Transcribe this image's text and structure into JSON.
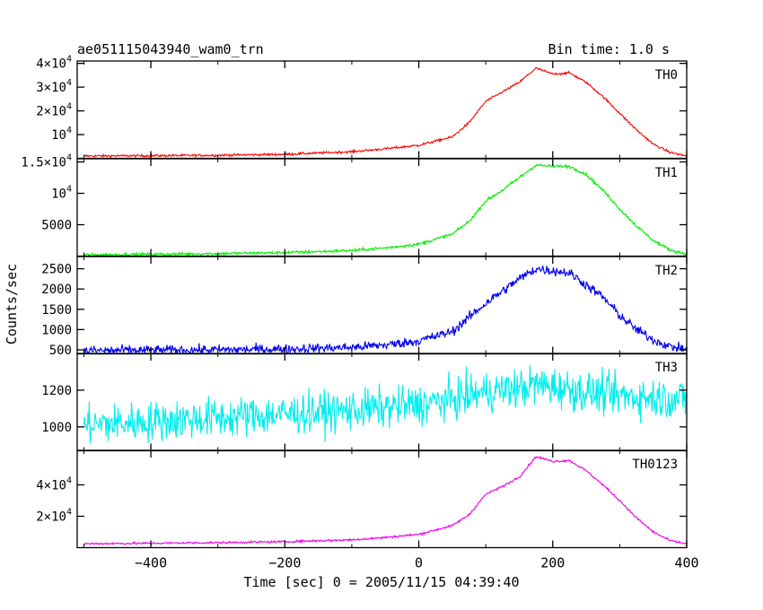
{
  "header": {
    "title": "ae051115043940_wam0_trn",
    "bin_time": "Bin time: 1.0 s"
  },
  "axes": {
    "xlabel": "Time [sec] 0 = 2005/11/15 04:39:40",
    "ylabel": "Counts/sec"
  },
  "chart_data": {
    "type": "line",
    "x_range": [
      -510,
      400
    ],
    "x_ticks": [
      -400,
      -200,
      0,
      200,
      400
    ],
    "x_tick_labels": [
      "−400",
      "−200",
      "0",
      "200",
      "400"
    ],
    "panels": [
      {
        "name": "TH0",
        "color": "#ff0000",
        "ylim": [
          0,
          41000
        ],
        "y_ticks": [
          10000,
          20000,
          30000,
          40000
        ],
        "y_tick_labels": [
          [
            "10",
            "4"
          ],
          [
            "2×10",
            "4"
          ],
          [
            "3×10",
            "4"
          ],
          [
            "4×10",
            "4"
          ]
        ],
        "noise": 250,
        "points": [
          [
            -500,
            1000
          ],
          [
            -400,
            1100
          ],
          [
            -300,
            1300
          ],
          [
            -200,
            1700
          ],
          [
            -100,
            2800
          ],
          [
            -50,
            4000
          ],
          [
            0,
            5500
          ],
          [
            50,
            9000
          ],
          [
            75,
            15000
          ],
          [
            100,
            24000
          ],
          [
            125,
            28000
          ],
          [
            150,
            32000
          ],
          [
            175,
            38000
          ],
          [
            200,
            35500
          ],
          [
            225,
            36000
          ],
          [
            250,
            32000
          ],
          [
            275,
            26000
          ],
          [
            300,
            19000
          ],
          [
            325,
            12000
          ],
          [
            350,
            6000
          ],
          [
            375,
            2500
          ],
          [
            400,
            1000
          ]
        ]
      },
      {
        "name": "TH1",
        "color": "#00ee00",
        "ylim": [
          0,
          15500
        ],
        "y_ticks": [
          5000,
          10000,
          15000
        ],
        "y_tick_labels": [
          [
            "5000",
            ""
          ],
          [
            "10",
            "4"
          ],
          [
            "1.5×10",
            "4"
          ]
        ],
        "noise": 120,
        "points": [
          [
            -500,
            200
          ],
          [
            -400,
            300
          ],
          [
            -300,
            400
          ],
          [
            -200,
            550
          ],
          [
            -100,
            900
          ],
          [
            -50,
            1300
          ],
          [
            0,
            1900
          ],
          [
            50,
            3500
          ],
          [
            75,
            5500
          ],
          [
            100,
            8800
          ],
          [
            125,
            10500
          ],
          [
            150,
            12500
          ],
          [
            175,
            14500
          ],
          [
            200,
            14300
          ],
          [
            225,
            14300
          ],
          [
            250,
            13000
          ],
          [
            275,
            10500
          ],
          [
            300,
            7500
          ],
          [
            325,
            4800
          ],
          [
            350,
            2500
          ],
          [
            375,
            1000
          ],
          [
            400,
            300
          ]
        ]
      },
      {
        "name": "TH2",
        "color": "#0000ee",
        "ylim": [
          400,
          2800
        ],
        "y_ticks": [
          500,
          1000,
          1500,
          2000,
          2500
        ],
        "y_tick_labels": [
          [
            "500",
            ""
          ],
          [
            "1000",
            ""
          ],
          [
            "1500",
            ""
          ],
          [
            "2000",
            ""
          ],
          [
            "2500",
            ""
          ]
        ],
        "noise": 60,
        "points": [
          [
            -500,
            480
          ],
          [
            -400,
            490
          ],
          [
            -300,
            500
          ],
          [
            -200,
            520
          ],
          [
            -100,
            560
          ],
          [
            -50,
            620
          ],
          [
            0,
            720
          ],
          [
            50,
            950
          ],
          [
            75,
            1300
          ],
          [
            100,
            1650
          ],
          [
            125,
            1950
          ],
          [
            150,
            2250
          ],
          [
            175,
            2500
          ],
          [
            200,
            2450
          ],
          [
            225,
            2400
          ],
          [
            250,
            2100
          ],
          [
            275,
            1800
          ],
          [
            300,
            1350
          ],
          [
            325,
            1000
          ],
          [
            350,
            750
          ],
          [
            375,
            580
          ],
          [
            400,
            520
          ]
        ]
      },
      {
        "name": "TH3",
        "color": "#00eeee",
        "ylim": [
          870,
          1400
        ],
        "y_ticks": [
          1000,
          1200
        ],
        "y_tick_labels": [
          [
            "1000",
            ""
          ],
          [
            "1200",
            ""
          ]
        ],
        "noise": 55,
        "points": [
          [
            -500,
            1010
          ],
          [
            -400,
            1030
          ],
          [
            -300,
            1050
          ],
          [
            -200,
            1070
          ],
          [
            -100,
            1090
          ],
          [
            0,
            1120
          ],
          [
            50,
            1150
          ],
          [
            100,
            1190
          ],
          [
            150,
            1210
          ],
          [
            175,
            1230
          ],
          [
            200,
            1220
          ],
          [
            250,
            1190
          ],
          [
            300,
            1170
          ],
          [
            350,
            1160
          ],
          [
            400,
            1150
          ]
        ]
      },
      {
        "name": "TH0123",
        "color": "#ee00ee",
        "ylim": [
          0,
          62000
        ],
        "y_ticks": [
          20000,
          40000
        ],
        "y_tick_labels": [
          [
            "2×10",
            "4"
          ],
          [
            "4×10",
            "4"
          ]
        ],
        "noise": 350,
        "points": [
          [
            -500,
            2500
          ],
          [
            -400,
            2800
          ],
          [
            -300,
            3200
          ],
          [
            -200,
            3800
          ],
          [
            -100,
            5000
          ],
          [
            -50,
            6500
          ],
          [
            0,
            8500
          ],
          [
            50,
            14000
          ],
          [
            75,
            21000
          ],
          [
            100,
            34000
          ],
          [
            125,
            39000
          ],
          [
            150,
            45000
          ],
          [
            175,
            58000
          ],
          [
            200,
            55000
          ],
          [
            225,
            55500
          ],
          [
            250,
            49000
          ],
          [
            275,
            40000
          ],
          [
            300,
            30000
          ],
          [
            325,
            19000
          ],
          [
            350,
            10000
          ],
          [
            375,
            4500
          ],
          [
            400,
            2500
          ]
        ]
      }
    ]
  }
}
